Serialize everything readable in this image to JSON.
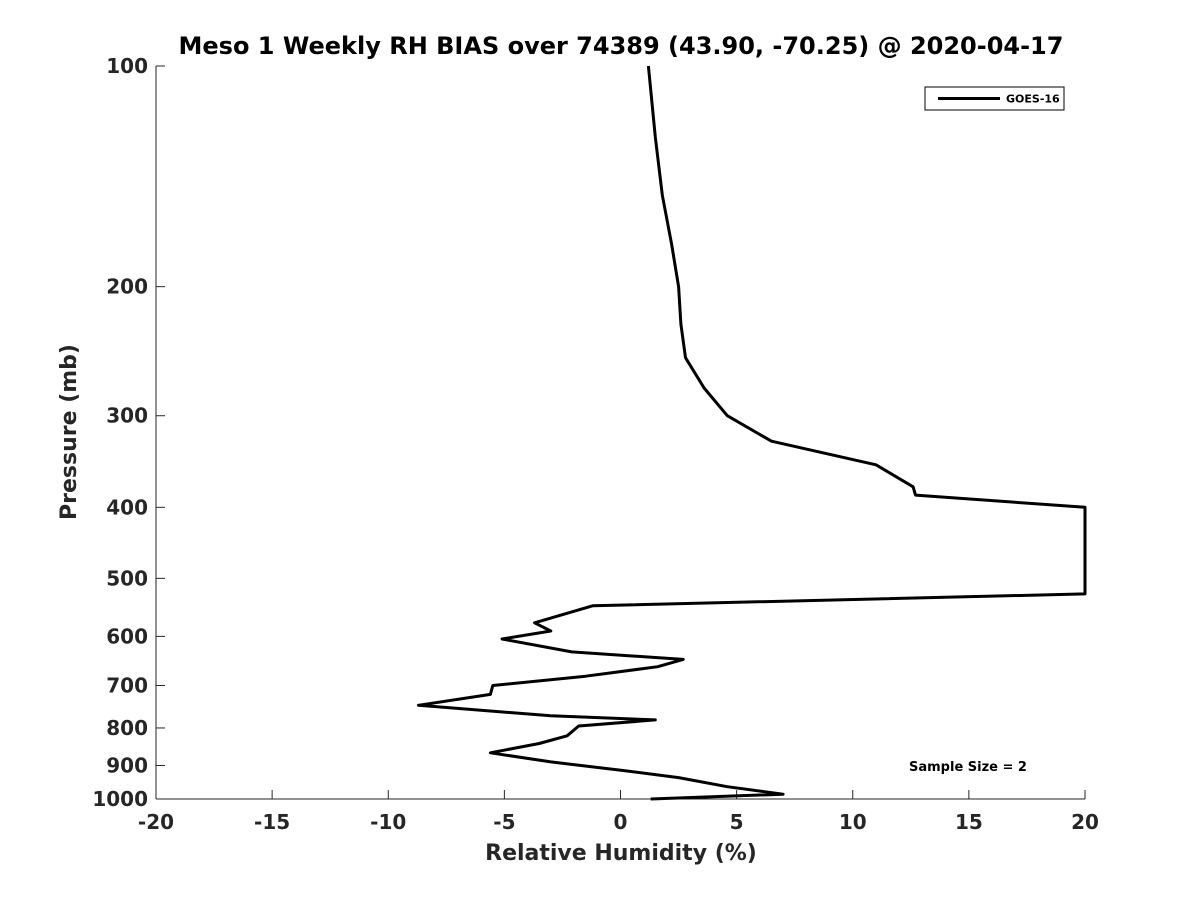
{
  "chart_data": {
    "type": "line",
    "title": "Meso 1 Weekly RH BIAS over 74389 (43.90, -70.25) @ 2020-04-17",
    "xlabel": "Relative Humidity (%)",
    "ylabel": "Pressure (mb)",
    "xlim": [
      -20,
      20
    ],
    "ylim": [
      1000,
      100
    ],
    "yscale": "log",
    "y_reversed": true,
    "grid": false,
    "legend_position": "top-right",
    "x_ticks": [
      -20,
      -15,
      -10,
      -5,
      0,
      5,
      10,
      15,
      20
    ],
    "x_tick_labels": [
      "-20",
      "-15",
      "-10",
      "-5",
      "0",
      "5",
      "10",
      "15",
      "20"
    ],
    "y_ticks": [
      100,
      200,
      300,
      400,
      500,
      600,
      700,
      800,
      900,
      1000
    ],
    "y_tick_labels": [
      "100",
      "200",
      "300",
      "400",
      "500",
      "600",
      "700",
      "800",
      "900",
      "1000"
    ],
    "annotations": [
      {
        "text": "Sample Size = 2"
      }
    ],
    "series": [
      {
        "name": "GOES-16",
        "color": "#000000",
        "points": [
          [
            1.2,
            100
          ],
          [
            1.5,
            125
          ],
          [
            1.8,
            150
          ],
          [
            2.2,
            175
          ],
          [
            2.5,
            200
          ],
          [
            2.6,
            225
          ],
          [
            2.8,
            250
          ],
          [
            3.6,
            275
          ],
          [
            4.6,
            300
          ],
          [
            6.5,
            325
          ],
          [
            11.0,
            350
          ],
          [
            12.6,
            375
          ],
          [
            12.7,
            385
          ],
          [
            20.0,
            400
          ],
          [
            20.0,
            525
          ],
          [
            -1.2,
            545
          ],
          [
            -3.7,
            575
          ],
          [
            -3.0,
            590
          ],
          [
            -5.1,
            605
          ],
          [
            -2.1,
            630
          ],
          [
            2.7,
            645
          ],
          [
            1.6,
            660
          ],
          [
            -1.5,
            680
          ],
          [
            -5.5,
            700
          ],
          [
            -5.6,
            720
          ],
          [
            -8.7,
            745
          ],
          [
            -3.0,
            770
          ],
          [
            1.5,
            780
          ],
          [
            -1.8,
            795
          ],
          [
            -2.3,
            820
          ],
          [
            -3.5,
            840
          ],
          [
            -5.6,
            865
          ],
          [
            -3.0,
            890
          ],
          [
            0.2,
            915
          ],
          [
            2.5,
            935
          ],
          [
            4.6,
            962
          ],
          [
            7.0,
            985
          ],
          [
            1.3,
            1000
          ]
        ]
      }
    ]
  }
}
